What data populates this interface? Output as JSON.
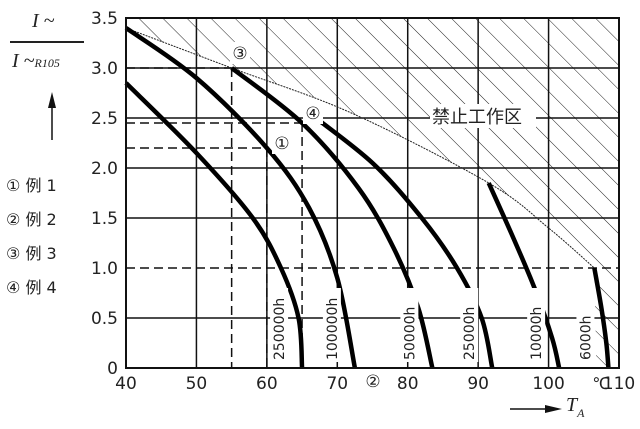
{
  "chart_data": {
    "type": "line",
    "title": "",
    "ylabel_top": "I ~",
    "ylabel_bottom": "I ~",
    "ylabel_subscript": "R105",
    "xlabel": "T",
    "xlabel_subscript": "A",
    "x_unit": "℃",
    "xlim": [
      40,
      110
    ],
    "ylim": [
      0,
      3.5
    ],
    "x_ticks": [
      "40",
      "50",
      "60",
      "70",
      "80",
      "90",
      "100",
      "110"
    ],
    "y_ticks": [
      "0",
      "0.5",
      "1.0",
      "1.5",
      "2.0",
      "2.5",
      "3.0",
      "3.5"
    ],
    "grid": true,
    "forbidden_zone_label": "禁止工作区",
    "boundary": {
      "name": "forbidden-zone-boundary",
      "x": [
        40,
        55,
        72,
        91.5,
        100,
        106.5
      ],
      "y": [
        3.4,
        3.0,
        2.55,
        1.85,
        1.4,
        1.0
      ]
    },
    "series": [
      {
        "name": "250000h",
        "x": [
          40,
          50,
          58,
          62,
          64.5,
          65
        ],
        "y": [
          2.85,
          2.15,
          1.5,
          1.0,
          0.5,
          0
        ]
      },
      {
        "name": "100000h",
        "x": [
          40,
          50,
          60,
          66,
          70,
          72.5
        ],
        "y": [
          3.4,
          2.9,
          2.2,
          1.6,
          0.9,
          0
        ]
      },
      {
        "name": "50000h",
        "x": [
          55,
          65,
          73,
          78,
          81.5,
          83.5
        ],
        "y": [
          3.0,
          2.45,
          1.8,
          1.2,
          0.6,
          0
        ]
      },
      {
        "name": "25000h",
        "x": [
          66,
          75,
          82,
          87,
          90.5,
          92
        ],
        "y": [
          2.55,
          2.05,
          1.5,
          1.0,
          0.5,
          0
        ]
      },
      {
        "name": "10000h",
        "x": [
          91.5,
          95,
          98,
          100.5,
          101.5
        ],
        "y": [
          1.85,
          1.3,
          0.8,
          0.3,
          0
        ]
      },
      {
        "name": "6000h",
        "x": [
          106.5,
          107.5,
          108.2,
          108.5
        ],
        "y": [
          1.0,
          0.6,
          0.25,
          0
        ]
      }
    ],
    "examples": [
      {
        "marker": "①",
        "label": "例 1",
        "at_x": 60,
        "at_y": 2.2,
        "lines_y": [
          2.2
        ],
        "lines_x": [
          60
        ]
      },
      {
        "marker": "②",
        "label": "例 2",
        "at_x": 72.5,
        "at_y": 0,
        "lines_y": [],
        "lines_x": []
      },
      {
        "marker": "③",
        "label": "例 3",
        "at_x": 55,
        "at_y": 3.0,
        "lines_y": [
          3.0
        ],
        "lines_x": [
          55
        ]
      },
      {
        "marker": "④",
        "label": "例 4",
        "at_x": 65,
        "at_y": 2.45,
        "lines_y": [
          2.45,
          1.0
        ],
        "lines_x": [
          65
        ]
      }
    ]
  },
  "legend": {
    "items": [
      {
        "marker": "①",
        "label": "例 1"
      },
      {
        "marker": "②",
        "label": "例 2"
      },
      {
        "marker": "③",
        "label": "例 3"
      },
      {
        "marker": "④",
        "label": "例 4"
      }
    ]
  },
  "axis": {
    "y_top": "I ~",
    "y_bottom": "I ~",
    "y_sub": "R105",
    "x_name": "T",
    "x_sub": "A",
    "unit": "℃"
  },
  "annotations": {
    "forbidden": "禁止工作区",
    "m1": "①",
    "m2": "②",
    "m3": "③",
    "m4": "④"
  }
}
